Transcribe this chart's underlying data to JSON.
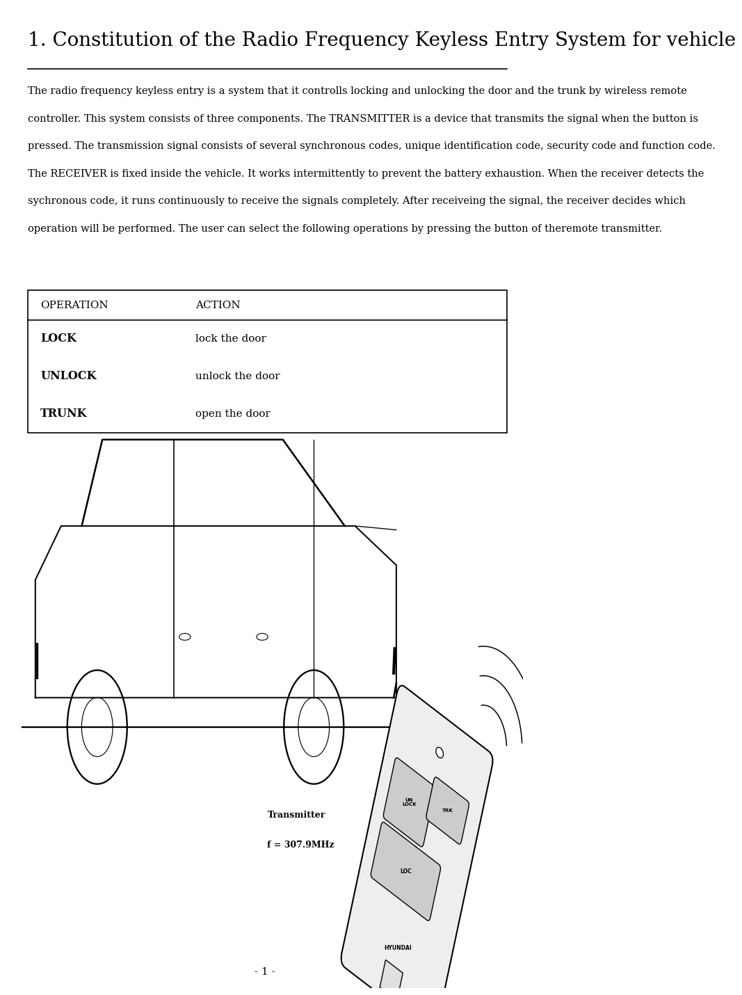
{
  "title": "1. Constitution of the Radio Frequency Keyless Entry System for vehicle",
  "body_lines": [
    "The radio frequency keyless entry is a system that it controlls locking and unlocking the door and the trunk by wireless remote",
    "controller. This system consists of three components. The TRANSMITTER is a device that transmits the signal when the button is",
    "pressed. The transmission signal consists of several synchronous codes, unique identification code, security code and function code.",
    "The RECEIVER is fixed inside the vehicle. It works intermittently to prevent the battery exhaustion. When the receiver detects the",
    "sychronous code, it runs continuously to receive the signals completely. After receiveing the signal, the receiver decides which",
    "operation will be performed. The user can select the following operations by pressing the button of theremote transmitter."
  ],
  "table_header_op": "OPERATION",
  "table_header_ac": "ACTION",
  "table_rows": [
    [
      "LOCK",
      "lock the door"
    ],
    [
      "UNLOCK",
      "unlock the door"
    ],
    [
      "TRUNK",
      "open the door"
    ]
  ],
  "transmitter_label": "Transmitter",
  "freq_label": "f = 307.9MHz",
  "page_number": "- 1 -",
  "bg_color": "#ffffff",
  "text_color": "#000000",
  "title_fontsize": 20,
  "body_fontsize": 10.5,
  "table_fontsize": 11
}
